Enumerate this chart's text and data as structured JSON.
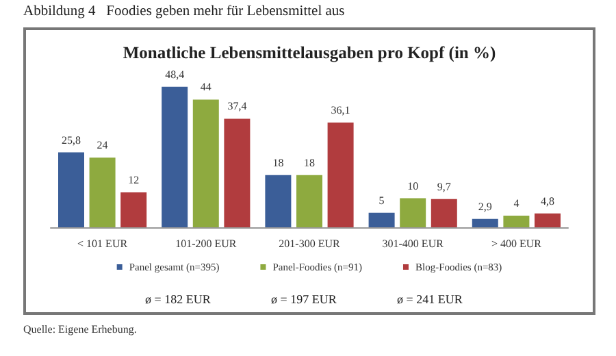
{
  "chart_data": {
    "type": "bar",
    "title": "Abbildung 4   Foodies geben mehr für Lebensmittel aus",
    "subtitle": "Monatliche Lebensmittelausgaben pro Kopf (in %)",
    "categories": [
      "< 101 EUR",
      "101-200 EUR",
      "201-300 EUR",
      "301-400 EUR",
      "> 400 EUR"
    ],
    "series": [
      {
        "name": "Panel gesamt (n=395)",
        "color": "#3b5e98",
        "values": [
          25.8,
          48.4,
          18,
          5,
          2.9
        ],
        "value_labels": [
          "25,8",
          "48,4",
          "18",
          "5",
          "2,9"
        ]
      },
      {
        "name": "Panel-Foodies (n=91)",
        "color": "#8eaa3f",
        "values": [
          24,
          44,
          18,
          10,
          4
        ],
        "value_labels": [
          "24",
          "44",
          "18",
          "10",
          "4"
        ]
      },
      {
        "name": "Blog-Foodies (n=83)",
        "color": "#b13c3e",
        "values": [
          12,
          37.4,
          36.1,
          9.7,
          4.8
        ],
        "value_labels": [
          "12",
          "37,4",
          "36,1",
          "9,7",
          "4,8"
        ]
      }
    ],
    "legend": "bottom",
    "annotations": [
      "ø = 182 EUR",
      "ø = 197 EUR",
      "ø = 241 EUR",
      "Quelle: Eigene Erhebung."
    ]
  }
}
